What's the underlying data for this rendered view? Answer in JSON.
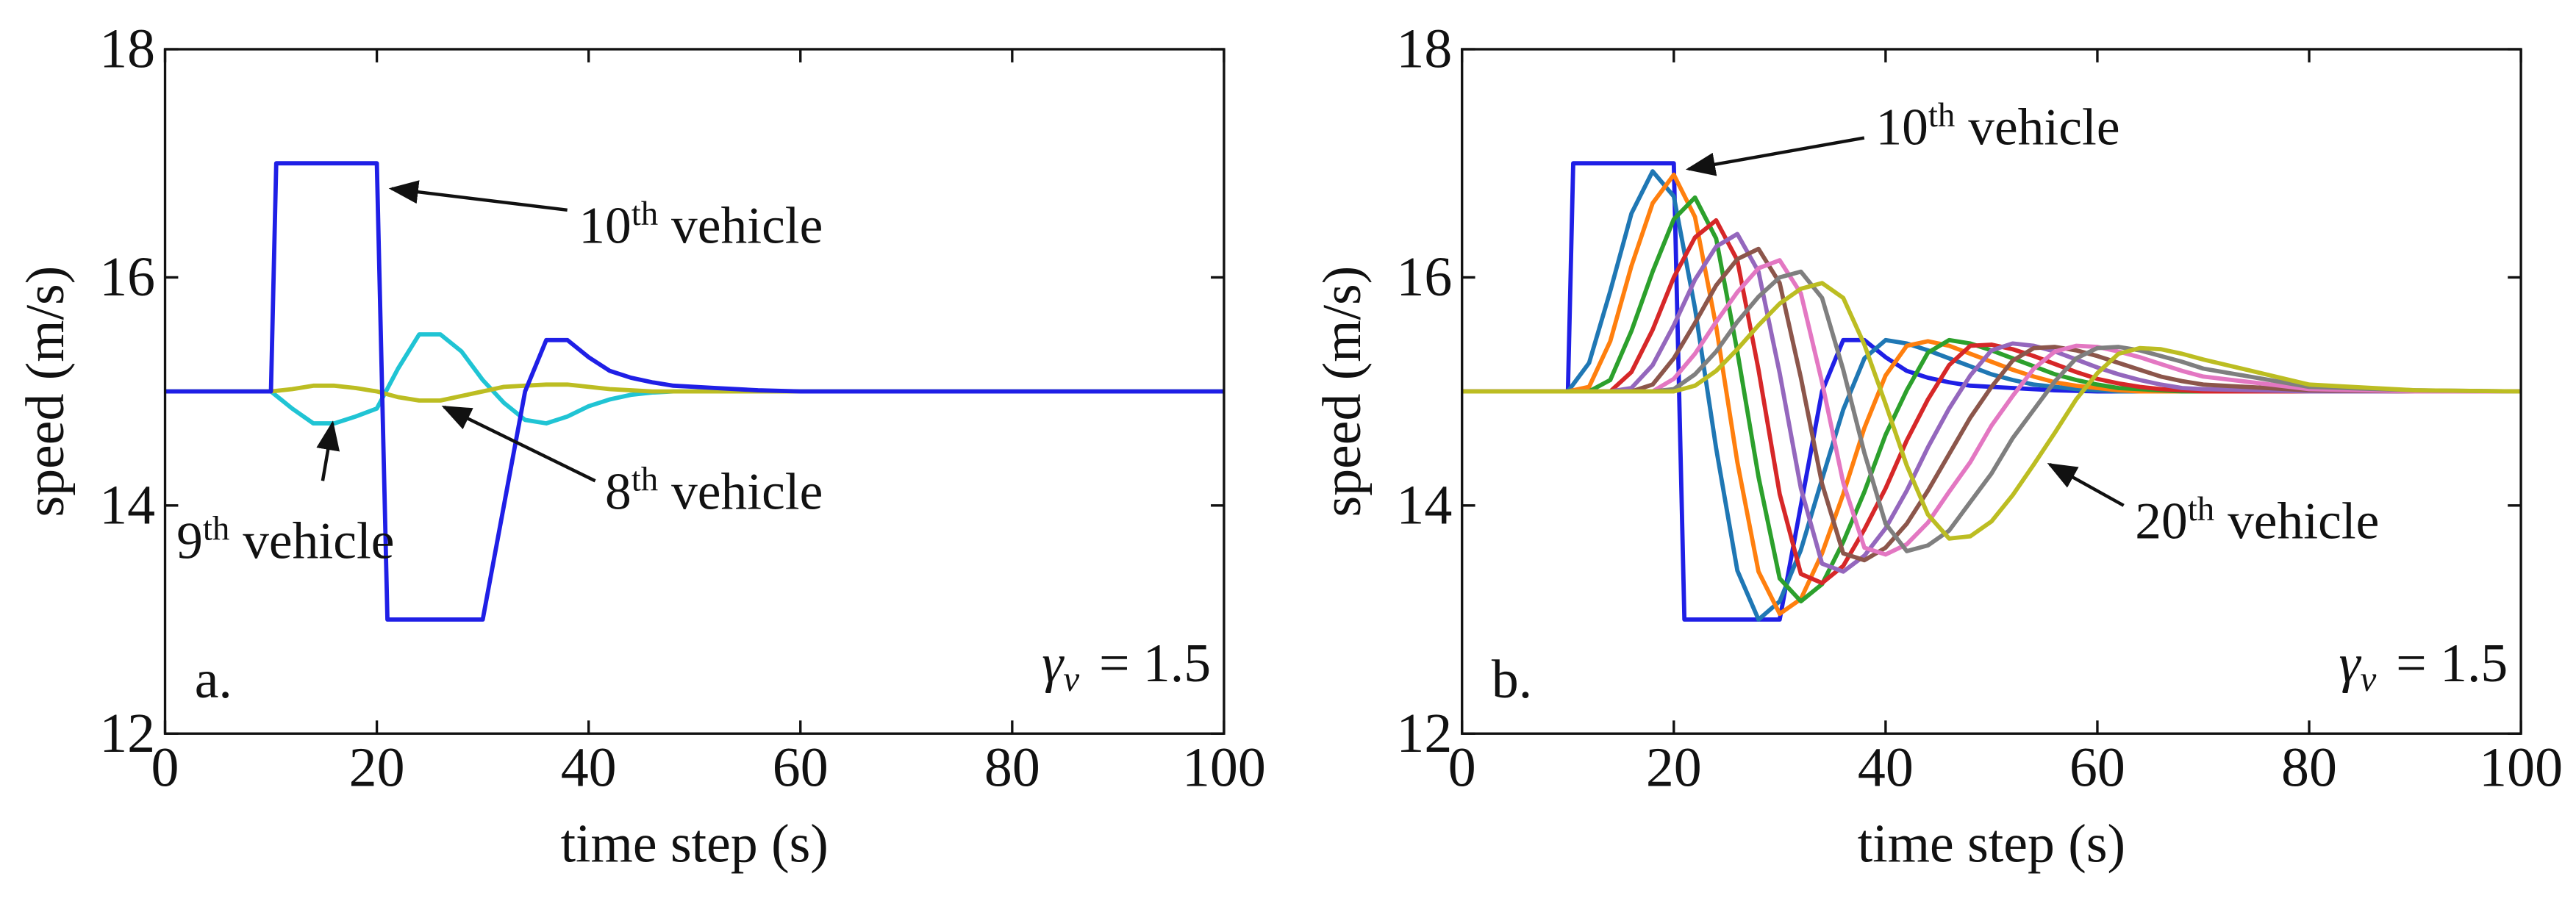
{
  "chart_data": [
    {
      "type": "line",
      "panel_label": "a.",
      "xlabel": "time step (s)",
      "ylabel": "speed (m/s)",
      "xlim": [
        0,
        100
      ],
      "ylim": [
        12,
        18
      ],
      "xticks": [
        0,
        20,
        40,
        60,
        80,
        100
      ],
      "yticks": [
        12,
        14,
        16,
        18
      ],
      "gamma": {
        "symbol": "γ",
        "subscript": "v",
        "text": "= 1.5"
      },
      "annotations": [
        {
          "number": "10",
          "suffix": "th",
          "text": "vehicle"
        },
        {
          "number": "9",
          "suffix": "th",
          "text": "vehicle"
        },
        {
          "number": "8",
          "suffix": "th",
          "text": "vehicle"
        }
      ],
      "x": [
        0,
        2,
        4,
        6,
        8,
        10,
        12,
        14,
        16,
        18,
        20,
        22,
        24,
        26,
        28,
        30,
        32,
        34,
        36,
        38,
        40,
        42,
        44,
        46,
        48,
        50,
        52,
        54,
        56,
        58,
        60,
        62,
        64,
        66,
        68,
        70,
        80,
        90,
        100
      ],
      "series": [
        {
          "color": "#20c4d4",
          "values": [
            15,
            15,
            15,
            15,
            15,
            15,
            14.85,
            14.72,
            14.72,
            14.78,
            14.85,
            15.2,
            15.5,
            15.5,
            15.35,
            15.1,
            14.9,
            14.75,
            14.72,
            14.78,
            14.87,
            14.93,
            14.97,
            14.99,
            15,
            15,
            15,
            15,
            15,
            15,
            15,
            15,
            15,
            15,
            15,
            15,
            15,
            15,
            15
          ]
        },
        {
          "color": "#bcbd22",
          "values": [
            15,
            15,
            15,
            15,
            15,
            15,
            15.02,
            15.05,
            15.05,
            15.03,
            15.0,
            14.95,
            14.92,
            14.92,
            14.96,
            15.0,
            15.04,
            15.05,
            15.06,
            15.06,
            15.04,
            15.02,
            15.01,
            15,
            15,
            15,
            15,
            15,
            15,
            15,
            15,
            15,
            15,
            15,
            15,
            15,
            15,
            15,
            15
          ]
        },
        {
          "color": "#1f1fe6",
          "x": [
            0,
            10,
            10.5,
            20,
            21,
            30,
            32,
            34,
            36,
            38,
            40,
            42,
            44,
            46,
            48,
            50,
            52,
            56,
            60,
            70,
            80,
            90,
            100
          ],
          "values": [
            15,
            15,
            17,
            17,
            13,
            13,
            14.0,
            15.0,
            15.45,
            15.45,
            15.3,
            15.18,
            15.12,
            15.08,
            15.05,
            15.04,
            15.03,
            15.01,
            15,
            15,
            15,
            15,
            15
          ]
        }
      ]
    },
    {
      "type": "line",
      "panel_label": "b.",
      "xlabel": "time step (s)",
      "ylabel": "speed (m/s)",
      "xlim": [
        0,
        100
      ],
      "ylim": [
        12,
        18
      ],
      "xticks": [
        0,
        20,
        40,
        60,
        80,
        100
      ],
      "yticks": [
        12,
        14,
        16,
        18
      ],
      "gamma": {
        "symbol": "γ",
        "subscript": "v",
        "text": "= 1.5"
      },
      "annotations": [
        {
          "number": "10",
          "suffix": "th",
          "text": "vehicle"
        },
        {
          "number": "20",
          "suffix": "th",
          "text": "vehicle"
        }
      ],
      "x": [
        0,
        2,
        4,
        6,
        8,
        10,
        12,
        14,
        16,
        18,
        20,
        22,
        24,
        26,
        28,
        30,
        32,
        34,
        36,
        38,
        40,
        42,
        44,
        46,
        48,
        50,
        52,
        54,
        56,
        58,
        60,
        62,
        64,
        66,
        68,
        70,
        80,
        90,
        100
      ],
      "series": [
        {
          "color": "#1f1fe6",
          "x": [
            0,
            10,
            10.5,
            20,
            21,
            30,
            32,
            34,
            36,
            38,
            40,
            42,
            44,
            46,
            48,
            50,
            52,
            56,
            60,
            70,
            80,
            90,
            100
          ],
          "values": [
            15,
            15,
            17,
            17,
            13,
            13,
            14.0,
            15.0,
            15.45,
            15.45,
            15.3,
            15.18,
            15.12,
            15.08,
            15.05,
            15.04,
            15.03,
            15.01,
            15,
            15,
            15,
            15,
            15
          ]
        },
        {
          "color": "#1f77b4",
          "values": [
            15,
            15,
            15,
            15,
            15,
            15,
            15.25,
            15.88,
            16.56,
            16.93,
            16.71,
            15.73,
            14.5,
            13.43,
            13.0,
            13.16,
            13.61,
            14.23,
            14.84,
            15.29,
            15.45,
            15.42,
            15.36,
            15.29,
            15.22,
            15.15,
            15.1,
            15.06,
            15.04,
            15.02,
            15.01,
            15,
            15,
            15,
            15,
            15,
            15,
            15,
            15
          ]
        },
        {
          "color": "#ff7f0e",
          "values": [
            15,
            15,
            15,
            15,
            15,
            15,
            15.04,
            15.44,
            16.1,
            16.65,
            16.9,
            16.53,
            15.57,
            14.38,
            13.42,
            13.05,
            13.18,
            13.58,
            14.1,
            14.68,
            15.14,
            15.4,
            15.44,
            15.4,
            15.33,
            15.26,
            15.19,
            15.13,
            15.08,
            15.05,
            15.03,
            15.01,
            15,
            15,
            15,
            15,
            15,
            15,
            15
          ]
        },
        {
          "color": "#2ca02c",
          "values": [
            15,
            15,
            15,
            15,
            15,
            15,
            15,
            15.1,
            15.53,
            16.05,
            16.51,
            16.7,
            16.34,
            15.35,
            14.25,
            13.36,
            13.16,
            13.31,
            13.68,
            14.12,
            14.62,
            15.01,
            15.34,
            15.45,
            15.42,
            15.36,
            15.29,
            15.22,
            15.15,
            15.1,
            15.06,
            15.03,
            15.02,
            15.01,
            15,
            15,
            15,
            15,
            15
          ]
        },
        {
          "color": "#d62728",
          "values": [
            15,
            15,
            15,
            15,
            15,
            15,
            15,
            15,
            15.17,
            15.54,
            16.0,
            16.35,
            16.5,
            16.15,
            15.19,
            14.1,
            13.4,
            13.32,
            13.47,
            13.79,
            14.15,
            14.57,
            14.93,
            15.23,
            15.4,
            15.41,
            15.37,
            15.31,
            15.24,
            15.17,
            15.11,
            15.07,
            15.04,
            15.02,
            15.01,
            15,
            15,
            15,
            15
          ]
        },
        {
          "color": "#9467bd",
          "values": [
            15,
            15,
            15,
            15,
            15,
            15,
            15,
            15,
            15.03,
            15.23,
            15.58,
            15.98,
            16.27,
            16.38,
            16.05,
            15.16,
            14.15,
            13.49,
            13.42,
            13.56,
            13.8,
            14.13,
            14.51,
            14.85,
            15.14,
            15.36,
            15.42,
            15.4,
            15.35,
            15.28,
            15.21,
            15.15,
            15.1,
            15.06,
            15.03,
            15.02,
            15,
            15,
            15
          ]
        },
        {
          "color": "#8c564b",
          "values": [
            15,
            15,
            15,
            15,
            15,
            15,
            15,
            15,
            15,
            15.06,
            15.29,
            15.6,
            15.93,
            16.16,
            16.25,
            15.95,
            15.12,
            14.19,
            13.58,
            13.52,
            13.63,
            13.84,
            14.13,
            14.45,
            14.77,
            15.04,
            15.27,
            15.38,
            15.39,
            15.36,
            15.31,
            15.25,
            15.19,
            15.13,
            15.09,
            15.06,
            15.01,
            15,
            15
          ]
        },
        {
          "color": "#e377c2",
          "values": [
            15,
            15,
            15,
            15,
            15,
            15,
            15,
            15,
            15,
            15,
            15.11,
            15.33,
            15.61,
            15.87,
            16.08,
            16.15,
            15.86,
            15.08,
            14.2,
            13.63,
            13.57,
            13.66,
            13.85,
            14.12,
            14.38,
            14.7,
            14.96,
            15.2,
            15.35,
            15.4,
            15.39,
            15.35,
            15.3,
            15.24,
            15.18,
            15.13,
            15.02,
            15,
            15
          ]
        },
        {
          "color": "#7f7f7f",
          "values": [
            15,
            15,
            15,
            15,
            15,
            15,
            15,
            15,
            15,
            15,
            15.02,
            15.15,
            15.35,
            15.61,
            15.83,
            16.0,
            16.05,
            15.82,
            15.19,
            14.46,
            13.84,
            13.6,
            13.65,
            13.78,
            14.03,
            14.28,
            14.59,
            14.84,
            15.09,
            15.29,
            15.38,
            15.39,
            15.36,
            15.31,
            15.26,
            15.2,
            15.04,
            15.01,
            15
          ]
        },
        {
          "color": "#bcbd22",
          "values": [
            15,
            15,
            15,
            15,
            15,
            15,
            15,
            15,
            15,
            15,
            15,
            15.05,
            15.18,
            15.37,
            15.58,
            15.77,
            15.9,
            15.95,
            15.82,
            15.41,
            14.89,
            14.35,
            13.92,
            13.71,
            13.73,
            13.86,
            14.09,
            14.36,
            14.64,
            14.93,
            15.16,
            15.33,
            15.38,
            15.37,
            15.33,
            15.28,
            15.06,
            15.01,
            15
          ]
        }
      ]
    }
  ]
}
